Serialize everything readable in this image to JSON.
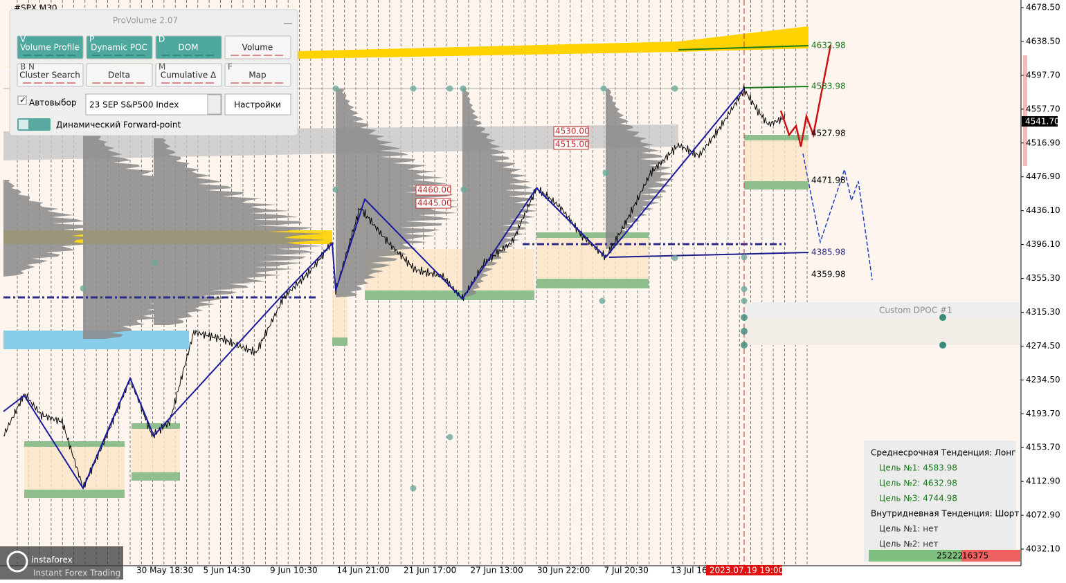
{
  "symbol": "#SPX,M30",
  "panel": {
    "title": "ProVolume 2.07",
    "buttons": [
      {
        "key": "V",
        "label": "Volume Profile"
      },
      {
        "key": "P",
        "label": "Dynamic POC"
      },
      {
        "key": "D",
        "label": "DOM"
      },
      {
        "label": "Volume"
      },
      {
        "key": "B N",
        "label": "Cluster Search"
      },
      {
        "label": "Delta"
      },
      {
        "key": "M",
        "label": "Cumulative Δ"
      },
      {
        "key": "F",
        "label": "Map"
      }
    ],
    "autoselect": "Автовыбор",
    "instrument": "23 SEP S&P500 Index",
    "settings": "Настройки",
    "forward_point": "Динамический Forward-point"
  },
  "price_axis": {
    "ticks": [
      "4678.50",
      "4638.50",
      "4597.70",
      "4557.70",
      "4516.90",
      "4476.90",
      "4436.10",
      "4396.10",
      "4355.30",
      "4315.30",
      "4274.50",
      "4234.50",
      "4193.70",
      "4153.70",
      "4112.90",
      "4072.90",
      "4032.10"
    ],
    "current": "4541.70"
  },
  "time_axis": {
    "labels": [
      "30 May 18:30",
      "5 Jun 14:30",
      "9 Jun 10:30",
      "14 Jun 21:00",
      "21 Jun 17:00",
      "27 Jun 13:00",
      "30 Jun 22:00",
      "7 Jul 20:30",
      "13 Jul 16:"
    ],
    "current": "2023.07.19 19:00"
  },
  "levels": [
    "4632.98",
    "4583.98",
    "4527.98",
    "4471.98",
    "4385.98",
    "4359.98"
  ],
  "boxes": [
    "4530.00",
    "4515.00",
    "4460.00",
    "4445.00"
  ],
  "custom_dpoc": "Custom DPOC #1",
  "info": {
    "lines": [
      "Среднесрочная Тенденция: Лонг",
      "Цель №1: 4583.98",
      "Цель №2: 4632.98",
      "Цель №3: 4744.98",
      "Внутридневная Тенденция: Шорт",
      "Цель №1: нет",
      "Цель №2: нет"
    ],
    "buy": "25222",
    "sell": "16375"
  },
  "logo": {
    "name": "instaforex",
    "tagline": "Instant Forex Trading"
  }
}
